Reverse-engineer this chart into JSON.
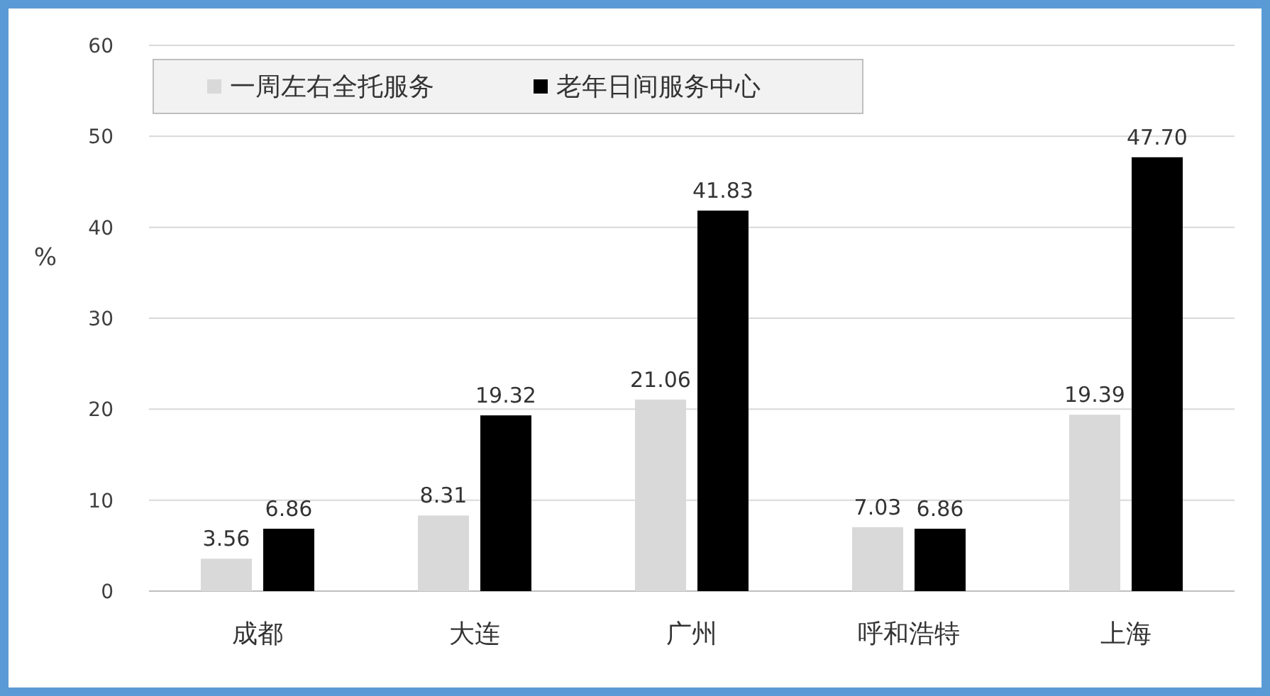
{
  "chart_data": {
    "type": "bar",
    "ylabel": "%",
    "categories": [
      "成都",
      "大连",
      "广州",
      "呼和浩特",
      "上海"
    ],
    "series": [
      {
        "name": "一周左右全托服务",
        "color": "#d9d9d9",
        "values": [
          3.56,
          8.31,
          21.06,
          7.03,
          19.39
        ]
      },
      {
        "name": "老年日间服务中心",
        "color": "#000000",
        "values": [
          6.86,
          19.32,
          41.83,
          6.86,
          47.7
        ]
      }
    ],
    "ylim": [
      0,
      60
    ],
    "yticks": [
      0,
      10,
      20,
      30,
      40,
      50,
      60
    ],
    "grid": "y",
    "legend": "top left",
    "value_labels": [
      [
        "3.56",
        "8.31",
        "21.06",
        "7.03",
        "19.39"
      ],
      [
        "6.86",
        "19.32",
        "41.83",
        "6.86",
        "47.70"
      ]
    ]
  }
}
